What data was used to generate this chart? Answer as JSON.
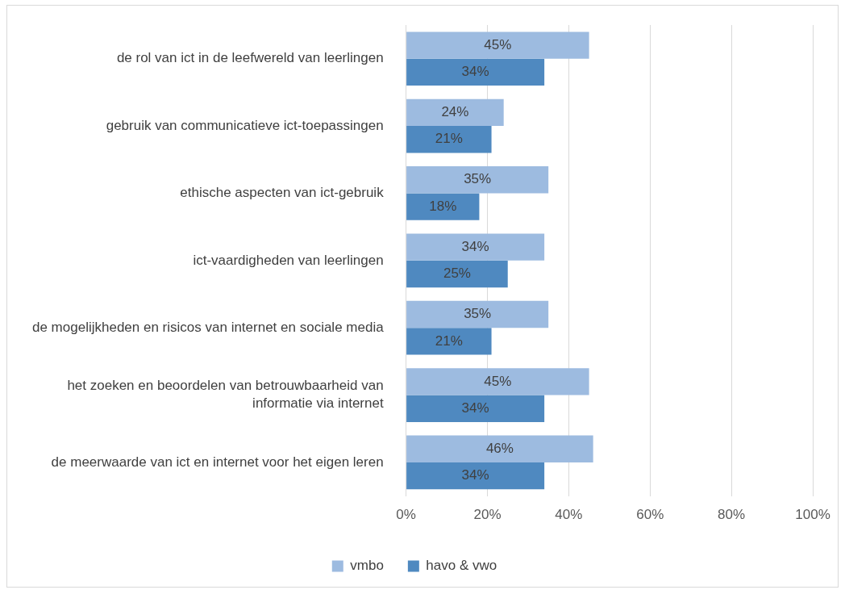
{
  "chart_data": {
    "type": "bar",
    "orientation": "horizontal",
    "categories": [
      "de rol van ict in de leefwereld van leerlingen",
      "gebruik van communicatieve ict-toepassingen",
      "ethische aspecten van ict-gebruik",
      "ict-vaardigheden van leerlingen",
      "de mogelijkheden en risicos van internet en sociale media",
      "het zoeken en beoordelen van betrouwbaarheid van informatie via internet",
      "de meerwaarde van ict en internet voor het eigen leren"
    ],
    "series": [
      {
        "name": "vmbo",
        "color": "#9dbbe0",
        "values": [
          45,
          24,
          35,
          34,
          35,
          45,
          46
        ],
        "value_labels": [
          "45%",
          "24%",
          "35%",
          "34%",
          "35%",
          "45%",
          "46%"
        ]
      },
      {
        "name": "havo & vwo",
        "color": "#4f89c0",
        "values": [
          34,
          21,
          18,
          25,
          21,
          34,
          34
        ],
        "value_labels": [
          "34%",
          "21%",
          "18%",
          "25%",
          "21%",
          "34%",
          "34%"
        ]
      }
    ],
    "xlim": [
      0,
      100
    ],
    "xticks": [
      {
        "value": 0,
        "label": "0%"
      },
      {
        "value": 20,
        "label": "20%"
      },
      {
        "value": 40,
        "label": "40%"
      },
      {
        "value": 60,
        "label": "60%"
      },
      {
        "value": 80,
        "label": "80%"
      },
      {
        "value": 100,
        "label": "100%"
      }
    ],
    "grid": "x",
    "legend": "bottom"
  }
}
